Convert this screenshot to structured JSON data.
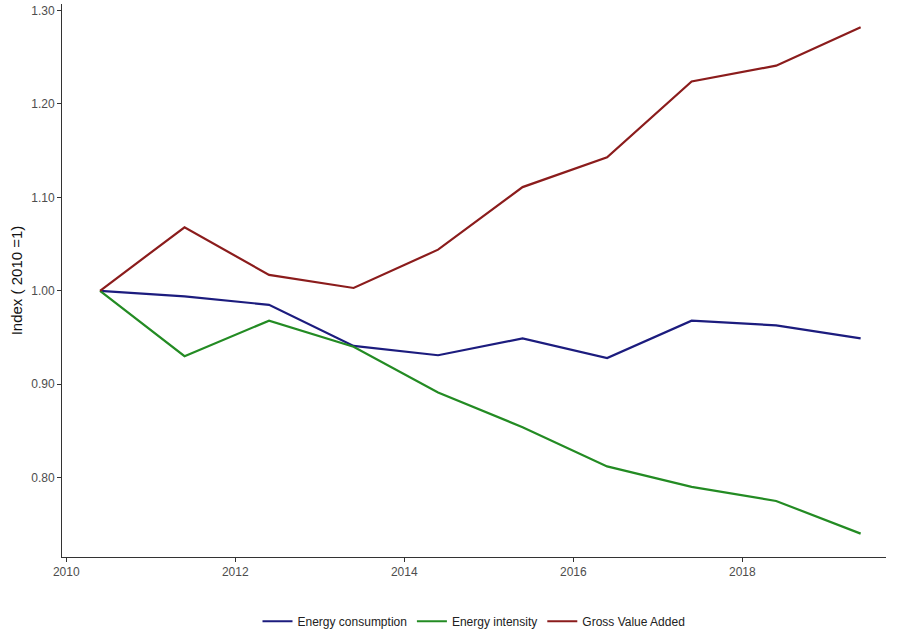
{
  "chart_data": {
    "type": "line",
    "y_label": "Index ( 2010 =1)",
    "x": [
      2010.4,
      2011.4,
      2012.4,
      2013.4,
      2014.4,
      2015.4,
      2016.4,
      2017.4,
      2018.4,
      2019.4
    ],
    "series": [
      {
        "name": "Energy consumption",
        "color": "#1c1c7e",
        "values": [
          1.0,
          0.994,
          0.985,
          0.941,
          0.931,
          0.949,
          0.928,
          0.968,
          0.963,
          0.949
        ]
      },
      {
        "name": "Energy intensity",
        "color": "#238b23",
        "values": [
          1.0,
          0.93,
          0.968,
          0.94,
          0.891,
          0.854,
          0.812,
          0.79,
          0.775,
          0.74
        ]
      },
      {
        "name": "Gross Value Added",
        "color": "#8b1c1c",
        "values": [
          1.0,
          1.068,
          1.017,
          1.003,
          1.044,
          1.111,
          1.143,
          1.224,
          1.241,
          1.282
        ]
      }
    ],
    "xlim": [
      2009.95,
      2019.7
    ],
    "xticks": [
      2010,
      2012,
      2014,
      2016,
      2018
    ],
    "ylim": [
      0.715,
      1.307
    ],
    "yticks": [
      {
        "value": 0.8,
        "label": "0.80"
      },
      {
        "value": 0.9,
        "label": "0.90"
      },
      {
        "value": 1.0,
        "label": "1.00"
      },
      {
        "value": 1.1,
        "label": "1.10"
      },
      {
        "value": 1.2,
        "label": "1.20"
      },
      {
        "value": 1.3,
        "label": "1.30"
      }
    ],
    "grid": false,
    "legend": "bottom"
  }
}
